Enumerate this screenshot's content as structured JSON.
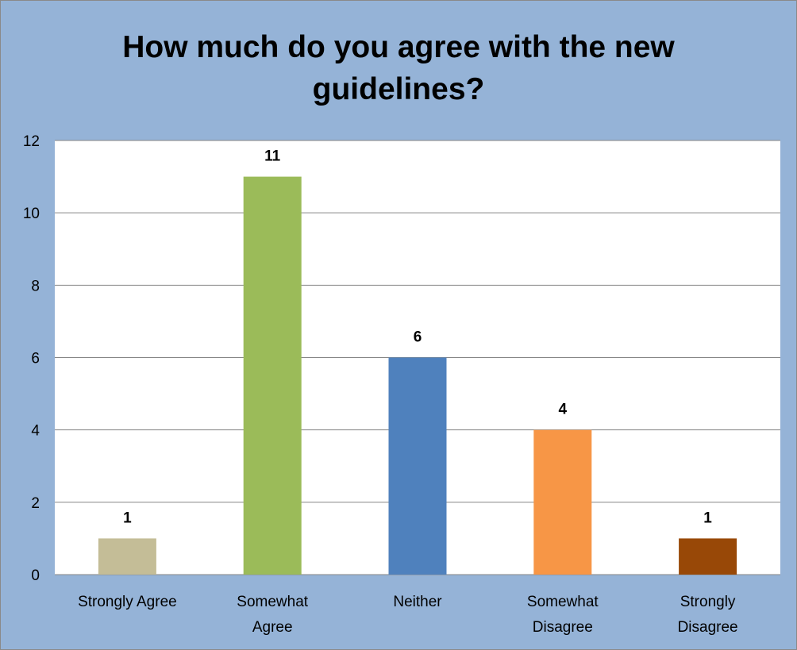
{
  "chart_data": {
    "type": "bar",
    "title_lines": [
      "How much do you agree with the new",
      "guidelines?"
    ],
    "categories": [
      [
        "Strongly Agree"
      ],
      [
        "Somewhat",
        "Agree"
      ],
      [
        "Neither"
      ],
      [
        "Somewhat",
        "Disagree"
      ],
      [
        "Strongly",
        "Disagree"
      ]
    ],
    "values": [
      1,
      11,
      6,
      4,
      1
    ],
    "data_labels": [
      "1",
      "11",
      "6",
      "4",
      "1"
    ],
    "bar_colors": [
      "#c4bd97",
      "#9bbb59",
      "#4f81bd",
      "#f79646",
      "#984807"
    ],
    "ylim": [
      0,
      12
    ],
    "yticks": [
      "0",
      "2",
      "4",
      "6",
      "8",
      "10",
      "12"
    ],
    "grid": true,
    "colors": {
      "background": "#95b3d7",
      "plot_area": "#ffffff",
      "gridline": "#868686"
    }
  }
}
